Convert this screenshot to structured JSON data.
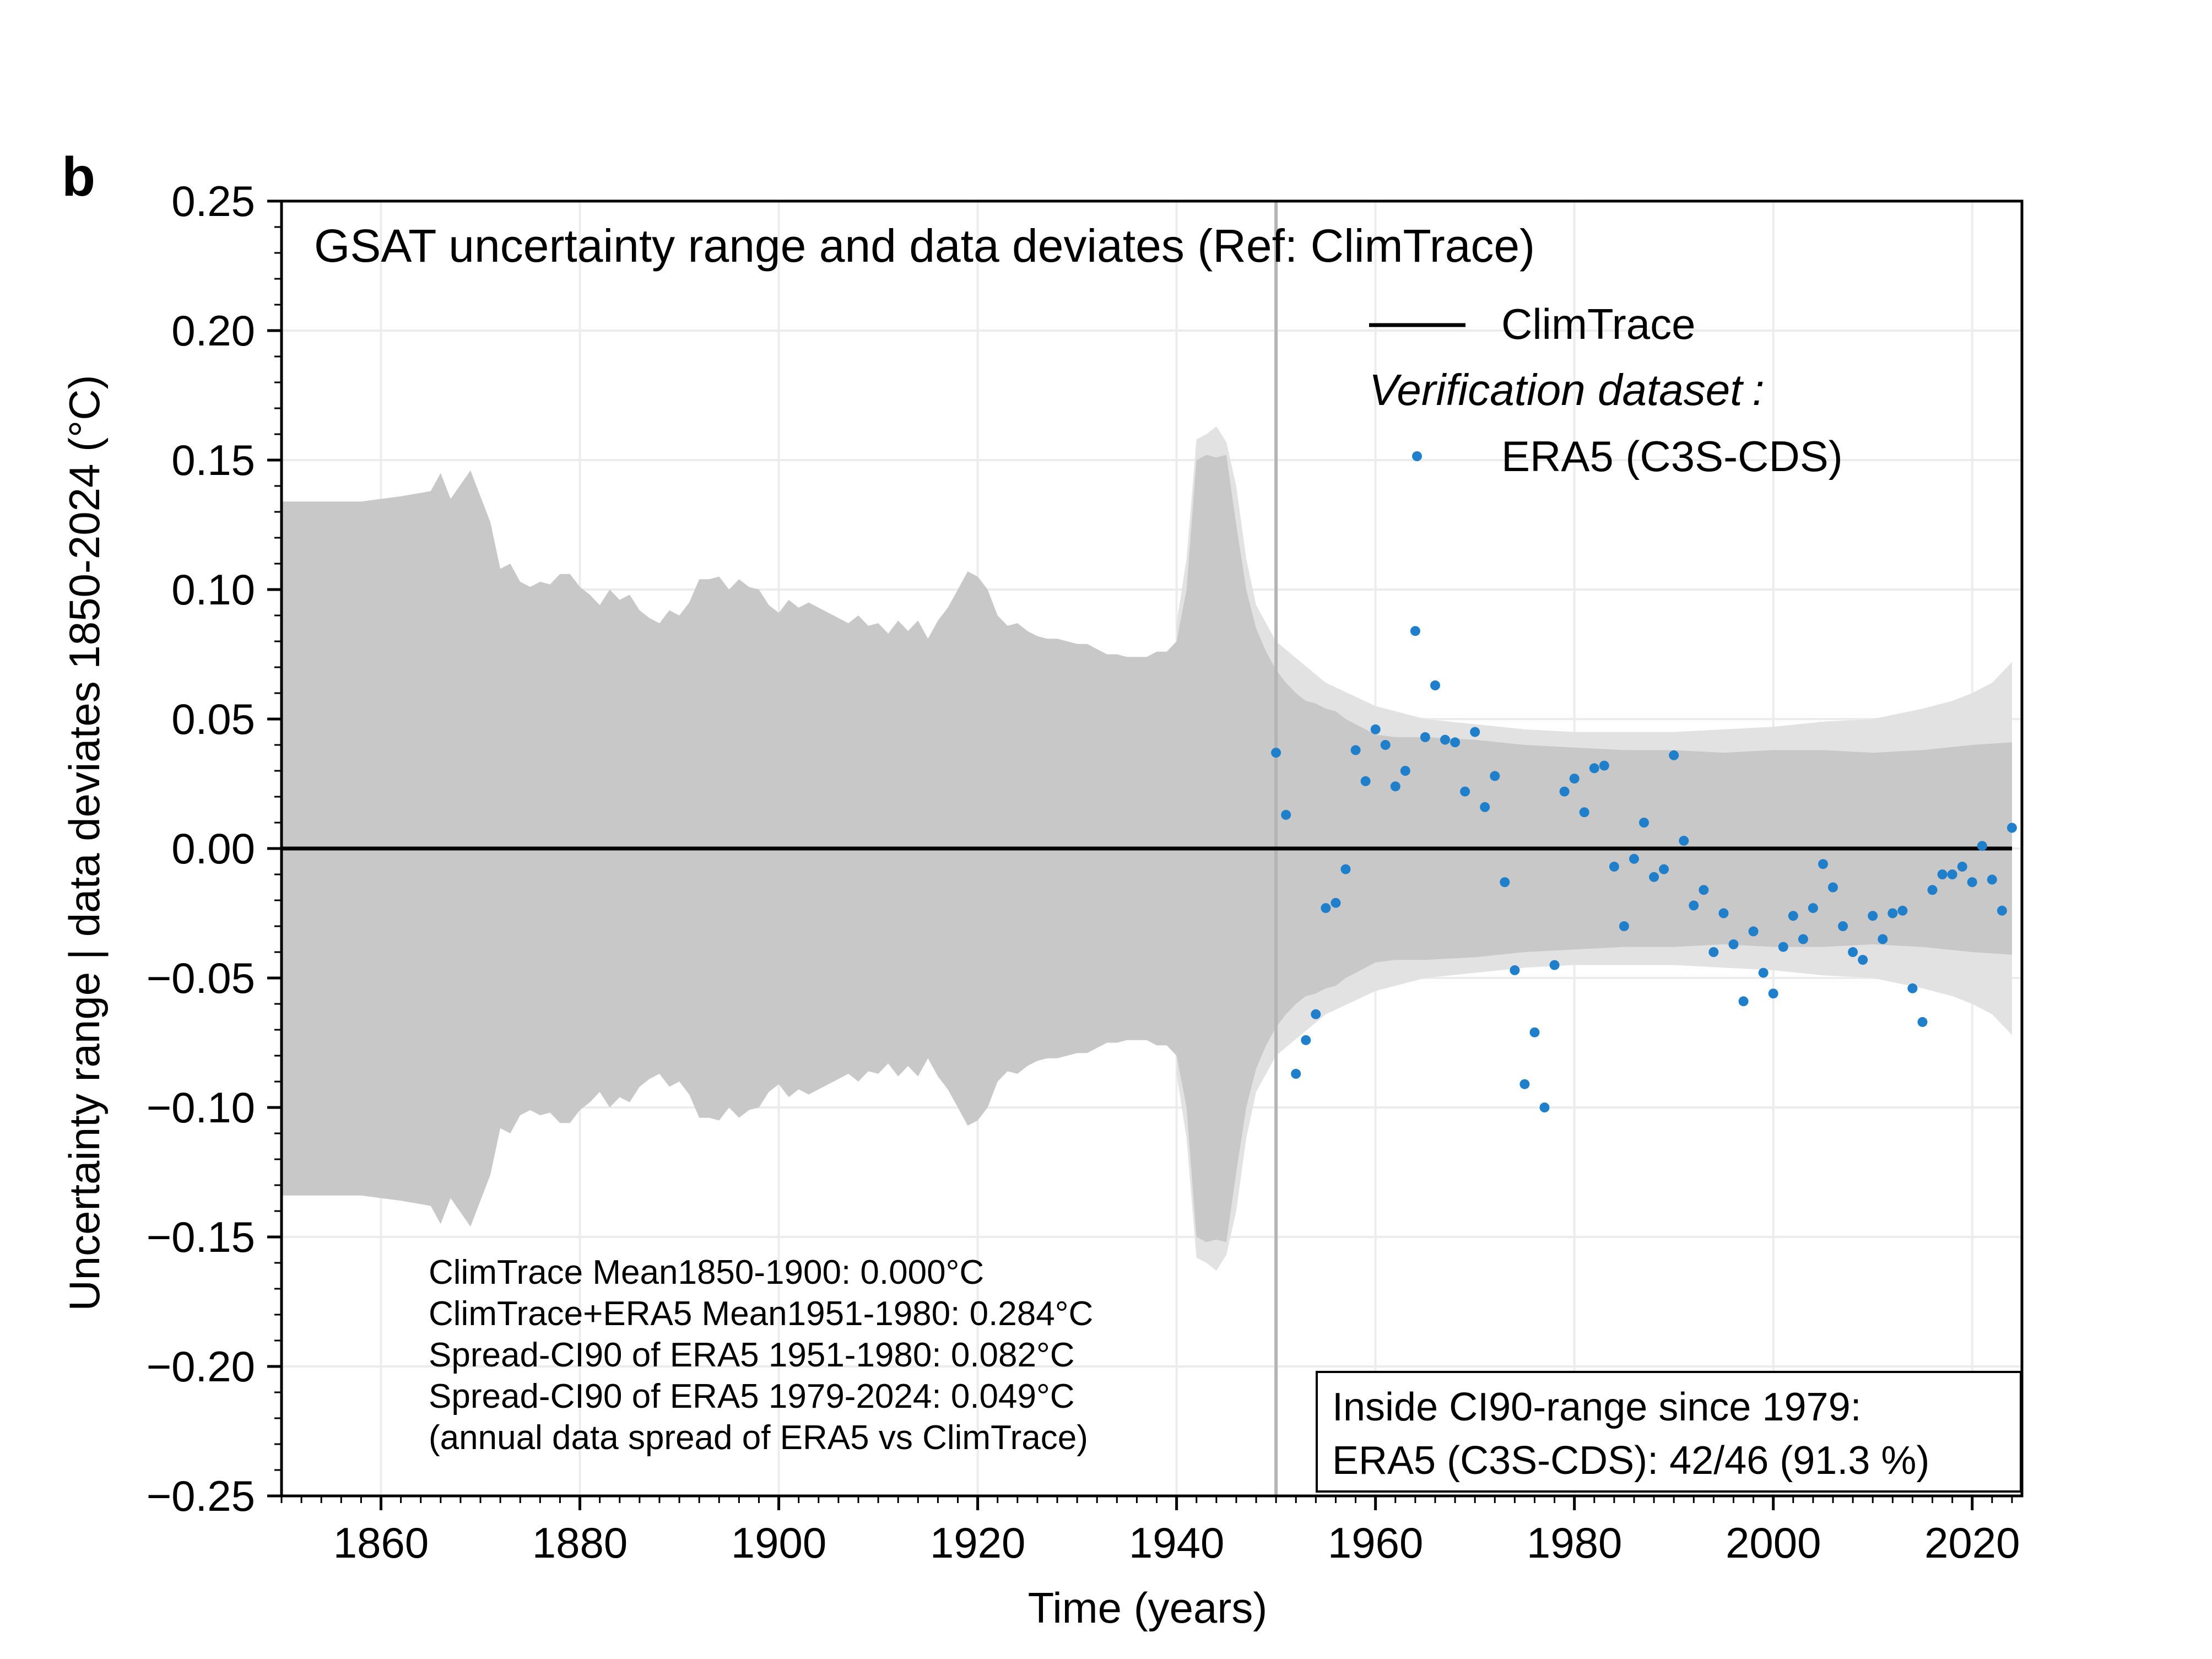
{
  "panel_label": "b",
  "chart_data": {
    "type": "scatter",
    "title": "GSAT uncertainty range and data deviates (Ref: ClimTrace)",
    "xlabel": "Time (years)",
    "ylabel": "Uncertainty range | data deviates 1850-2024 (°C)",
    "xlim": [
      1850,
      2025
    ],
    "ylim": [
      -0.25,
      0.25
    ],
    "xticks": [
      1860,
      1880,
      1900,
      1920,
      1940,
      1960,
      1980,
      2000,
      2020
    ],
    "xtick_labels": [
      "1860",
      "1880",
      "1900",
      "1920",
      "1940",
      "1960",
      "1980",
      "2000",
      "2020"
    ],
    "yticks": [
      0.25,
      0.2,
      0.15,
      0.1,
      0.05,
      0.0,
      -0.05,
      -0.1,
      -0.15,
      -0.2,
      -0.25
    ],
    "ytick_labels": [
      "0.25",
      "0.20",
      "0.15",
      "0.10",
      "0.05",
      "0.00",
      "−0.05",
      "−0.10",
      "−0.15",
      "−0.20",
      "−0.25"
    ],
    "grid": true,
    "legend_position": "top-right",
    "legend": {
      "reference_label": "ClimTrace",
      "verification_heading": "Verification dataset",
      "verification_colon": ":",
      "series_label": "ERA5 (C3S-CDS)"
    },
    "colors": {
      "points": "#1f7fcb",
      "inner_band": "#c8c8c8",
      "outer_band": "#e2e2e2",
      "reference_line": "#000000",
      "vertical_marker": "#b4b4b4"
    },
    "reference_line_y": 0.0,
    "vertical_marker_x": 1950,
    "uncertainty_band_inner": {
      "x": [
        1850,
        1858,
        1862,
        1865,
        1866,
        1867,
        1869,
        1871,
        1872,
        1873,
        1874,
        1875,
        1876,
        1877,
        1878,
        1879,
        1880,
        1881,
        1882,
        1883,
        1884,
        1885,
        1886,
        1887,
        1888,
        1889,
        1890,
        1891,
        1892,
        1893,
        1894,
        1895,
        1896,
        1897,
        1898,
        1899,
        1900,
        1901,
        1902,
        1903,
        1904,
        1905,
        1906,
        1907,
        1908,
        1909,
        1910,
        1911,
        1912,
        1913,
        1914,
        1915,
        1916,
        1917,
        1918,
        1919,
        1920,
        1921,
        1922,
        1923,
        1924,
        1925,
        1926,
        1927,
        1928,
        1929,
        1930,
        1931,
        1932,
        1933,
        1934,
        1935,
        1936,
        1937,
        1938,
        1939,
        1940,
        1941,
        1942,
        1943,
        1944,
        1945,
        1946,
        1947,
        1948,
        1949,
        1950,
        1951,
        1952,
        1953,
        1954,
        1955,
        1956,
        1957,
        1958,
        1959,
        1960,
        1962,
        1965,
        1970,
        1975,
        1980,
        1985,
        1990,
        1995,
        2000,
        2005,
        2010,
        2015,
        2020,
        2024
      ],
      "upper": [
        0.134,
        0.134,
        0.136,
        0.138,
        0.145,
        0.135,
        0.146,
        0.126,
        0.108,
        0.11,
        0.103,
        0.101,
        0.103,
        0.102,
        0.106,
        0.106,
        0.101,
        0.098,
        0.094,
        0.1,
        0.096,
        0.098,
        0.092,
        0.089,
        0.087,
        0.092,
        0.09,
        0.095,
        0.104,
        0.104,
        0.105,
        0.1,
        0.104,
        0.101,
        0.1,
        0.094,
        0.091,
        0.096,
        0.093,
        0.095,
        0.093,
        0.091,
        0.089,
        0.087,
        0.09,
        0.086,
        0.087,
        0.083,
        0.088,
        0.084,
        0.088,
        0.081,
        0.088,
        0.093,
        0.1,
        0.107,
        0.105,
        0.1,
        0.09,
        0.086,
        0.087,
        0.084,
        0.082,
        0.081,
        0.081,
        0.08,
        0.079,
        0.079,
        0.077,
        0.075,
        0.075,
        0.074,
        0.074,
        0.074,
        0.076,
        0.076,
        0.08,
        0.1,
        0.15,
        0.152,
        0.151,
        0.152,
        0.125,
        0.1,
        0.085,
        0.076,
        0.069,
        0.064,
        0.06,
        0.057,
        0.056,
        0.054,
        0.053,
        0.05,
        0.048,
        0.046,
        0.044,
        0.043,
        0.043,
        0.042,
        0.04,
        0.039,
        0.038,
        0.038,
        0.037,
        0.038,
        0.038,
        0.037,
        0.038,
        0.04,
        0.041
      ],
      "lower": [
        -0.134,
        -0.134,
        -0.136,
        -0.138,
        -0.145,
        -0.135,
        -0.146,
        -0.126,
        -0.108,
        -0.11,
        -0.103,
        -0.101,
        -0.103,
        -0.102,
        -0.106,
        -0.106,
        -0.101,
        -0.098,
        -0.094,
        -0.1,
        -0.096,
        -0.098,
        -0.092,
        -0.089,
        -0.087,
        -0.092,
        -0.09,
        -0.095,
        -0.104,
        -0.104,
        -0.105,
        -0.1,
        -0.104,
        -0.101,
        -0.1,
        -0.094,
        -0.091,
        -0.096,
        -0.093,
        -0.095,
        -0.093,
        -0.091,
        -0.089,
        -0.087,
        -0.09,
        -0.086,
        -0.087,
        -0.083,
        -0.088,
        -0.084,
        -0.088,
        -0.081,
        -0.088,
        -0.093,
        -0.1,
        -0.107,
        -0.105,
        -0.1,
        -0.09,
        -0.086,
        -0.087,
        -0.084,
        -0.082,
        -0.081,
        -0.081,
        -0.08,
        -0.079,
        -0.079,
        -0.077,
        -0.075,
        -0.075,
        -0.074,
        -0.074,
        -0.074,
        -0.076,
        -0.076,
        -0.08,
        -0.1,
        -0.15,
        -0.152,
        -0.151,
        -0.152,
        -0.125,
        -0.1,
        -0.085,
        -0.076,
        -0.069,
        -0.064,
        -0.06,
        -0.057,
        -0.056,
        -0.054,
        -0.053,
        -0.05,
        -0.048,
        -0.046,
        -0.044,
        -0.043,
        -0.043,
        -0.042,
        -0.04,
        -0.039,
        -0.038,
        -0.038,
        -0.037,
        -0.038,
        -0.038,
        -0.037,
        -0.038,
        -0.04,
        -0.041
      ]
    },
    "uncertainty_band_outer": {
      "x": [
        1940,
        1941,
        1942,
        1943,
        1944,
        1945,
        1946,
        1947,
        1948,
        1950,
        1955,
        1960,
        1965,
        1970,
        1975,
        1980,
        1985,
        1990,
        1995,
        2000,
        2005,
        2010,
        2015,
        2018,
        2020,
        2022,
        2024
      ],
      "upper": [
        0.087,
        0.112,
        0.158,
        0.16,
        0.163,
        0.157,
        0.14,
        0.112,
        0.094,
        0.08,
        0.064,
        0.055,
        0.05,
        0.048,
        0.046,
        0.045,
        0.045,
        0.045,
        0.046,
        0.047,
        0.049,
        0.05,
        0.054,
        0.057,
        0.06,
        0.064,
        0.072
      ],
      "lower": [
        -0.087,
        -0.112,
        -0.158,
        -0.16,
        -0.163,
        -0.157,
        -0.14,
        -0.112,
        -0.094,
        -0.08,
        -0.064,
        -0.055,
        -0.05,
        -0.048,
        -0.046,
        -0.045,
        -0.045,
        -0.045,
        -0.046,
        -0.047,
        -0.049,
        -0.05,
        -0.054,
        -0.057,
        -0.06,
        -0.064,
        -0.072
      ]
    },
    "series": [
      {
        "name": "ERA5 (C3S-CDS)",
        "x": [
          1950,
          1951,
          1952,
          1953,
          1954,
          1955,
          1956,
          1957,
          1958,
          1959,
          1960,
          1961,
          1962,
          1963,
          1964,
          1965,
          1966,
          1967,
          1968,
          1969,
          1970,
          1971,
          1972,
          1973,
          1974,
          1975,
          1976,
          1977,
          1978,
          1979,
          1980,
          1981,
          1982,
          1983,
          1984,
          1985,
          1986,
          1987,
          1988,
          1989,
          1990,
          1991,
          1992,
          1993,
          1994,
          1995,
          1996,
          1997,
          1998,
          1999,
          2000,
          2001,
          2002,
          2003,
          2004,
          2005,
          2006,
          2007,
          2008,
          2009,
          2010,
          2011,
          2012,
          2013,
          2014,
          2015,
          2016,
          2017,
          2018,
          2019,
          2020,
          2021,
          2022,
          2023,
          2024
        ],
        "y": [
          0.037,
          0.013,
          -0.087,
          -0.074,
          -0.064,
          -0.023,
          -0.021,
          -0.008,
          0.038,
          0.026,
          0.046,
          0.04,
          0.024,
          0.03,
          0.084,
          0.043,
          0.063,
          0.042,
          0.041,
          0.022,
          0.045,
          0.016,
          0.028,
          -0.013,
          -0.047,
          -0.091,
          -0.071,
          -0.1,
          -0.045,
          0.022,
          0.027,
          0.014,
          0.031,
          0.032,
          -0.007,
          -0.03,
          -0.004,
          0.01,
          -0.011,
          -0.008,
          0.036,
          0.003,
          -0.022,
          -0.016,
          -0.04,
          -0.025,
          -0.037,
          -0.059,
          -0.032,
          -0.048,
          -0.056,
          -0.038,
          -0.026,
          -0.035,
          -0.023,
          -0.006,
          -0.015,
          -0.03,
          -0.04,
          -0.043,
          -0.026,
          -0.035,
          -0.025,
          -0.024,
          -0.054,
          -0.067,
          -0.016,
          -0.01,
          -0.01,
          -0.007,
          -0.013,
          0.001,
          -0.012,
          -0.024,
          0.008
        ]
      }
    ],
    "stats_annotation": [
      "ClimTrace Mean1850-1900: 0.000°C",
      "ClimTrace+ERA5 Mean1951-1980: 0.284°C",
      "Spread-CI90 of ERA5 1951-1980: 0.082°C",
      "Spread-CI90 of ERA5 1979-2024: 0.049°C",
      "(annual data spread of ERA5 vs ClimTrace)"
    ],
    "inside_box": {
      "line1": "Inside CI90-range since 1979:",
      "line2": "ERA5 (C3S-CDS): 42/46 (91.3 %)"
    }
  }
}
